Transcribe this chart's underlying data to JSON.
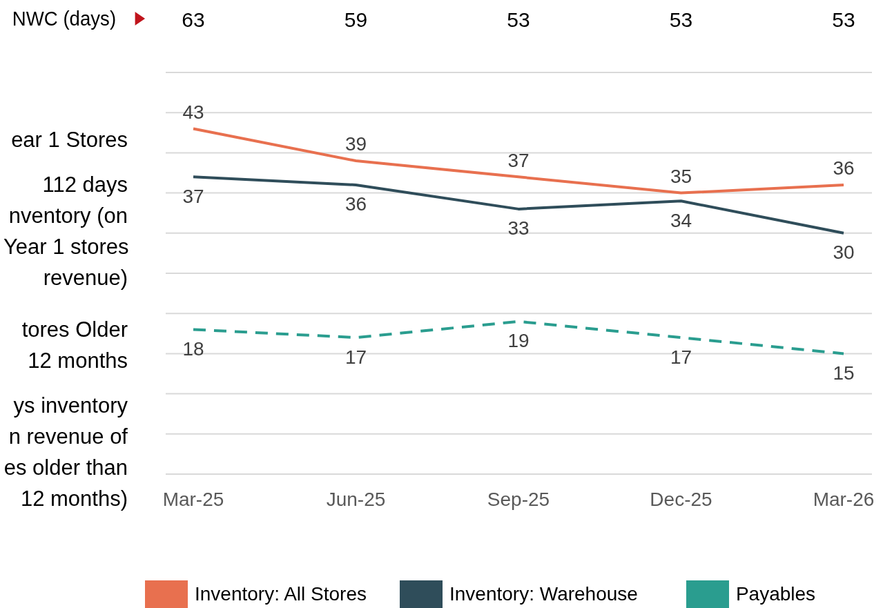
{
  "chart_data": {
    "type": "line",
    "categories": [
      "Mar-25",
      "Jun-25",
      "Sep-25",
      "Dec-25",
      "Mar-26"
    ],
    "series": [
      {
        "name": "Inventory: All Stores",
        "color": "#e8704f",
        "values": [
          43,
          39,
          37,
          35,
          36
        ],
        "line_style": "solid"
      },
      {
        "name": "Inventory: Warehouse",
        "color": "#2f4d5a",
        "values": [
          37,
          36,
          33,
          34,
          30
        ],
        "line_style": "solid"
      },
      {
        "name": "Payables",
        "color": "#2a9d8f",
        "values": [
          18,
          17,
          19,
          17,
          15
        ],
        "line_style": "dashed"
      }
    ],
    "ylim": [
      0,
      50
    ],
    "yticks": [
      {
        "value": 0,
        "label": null
      },
      {
        "value": 5,
        "label": null
      },
      {
        "value": 10,
        "label": null
      },
      {
        "value": 15,
        "label": null
      },
      {
        "value": 20,
        "label": null
      },
      {
        "value": 25,
        "label": null
      },
      {
        "value": 30,
        "label": null
      },
      {
        "value": 35,
        "label": null
      },
      {
        "value": 40,
        "label": null
      },
      {
        "value": 45,
        "label": null
      },
      {
        "value": 50,
        "label": null
      }
    ],
    "tick_labels": "x",
    "grid": "y",
    "legend": "bottom",
    "marker": "none",
    "data_labels": true,
    "annotations": [
      "NWC (days)",
      "63",
      "59",
      "53",
      "53",
      "53",
      "ear 1 Stores",
      "112 days\nnventory (on\nYear 1 stores\nrevenue)",
      "tores Older\n12 months",
      "ys inventory\nn revenue of\nes older than\n12 months)"
    ]
  }
}
